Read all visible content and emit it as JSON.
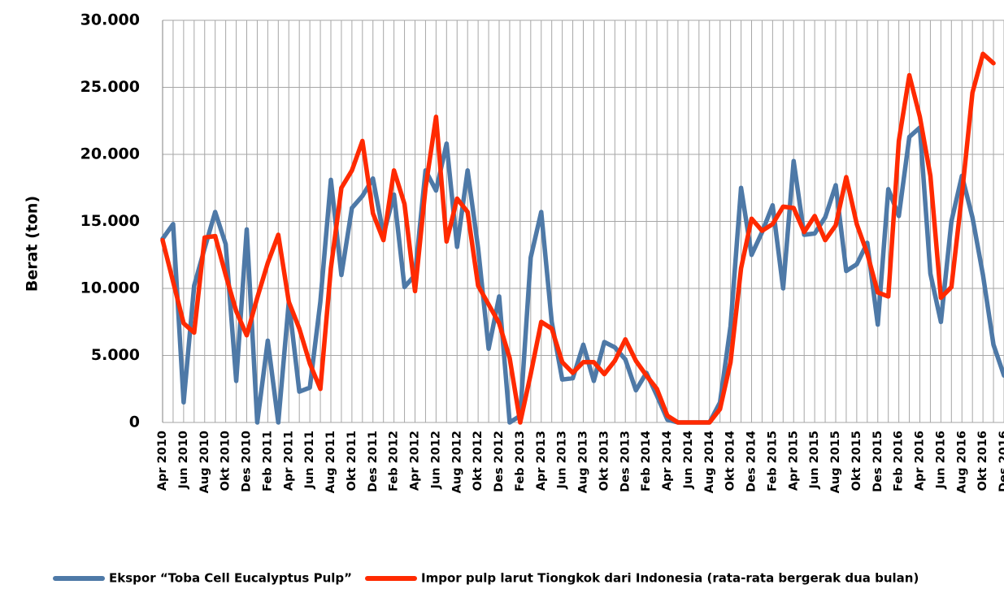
{
  "chart_data": {
    "type": "line",
    "y_label": "Berat (ton)",
    "categories": [
      "Apr 2010",
      null,
      "Jun 2010",
      null,
      "Aug 2010",
      null,
      "Okt 2010",
      null,
      "Des 2010",
      null,
      "Feb 2011",
      null,
      "Apr 2011",
      null,
      "Jun 2011",
      null,
      "Aug 2011",
      null,
      "Okt 2011",
      null,
      "Des 2011",
      null,
      "Feb 2012",
      null,
      "Apr 2012",
      null,
      "Jun 2012",
      null,
      "Aug 2012",
      null,
      "Okt 2012",
      null,
      "Des 2012",
      null,
      "Feb 2013",
      null,
      "Apr 2013",
      null,
      "Jun 2013",
      null,
      "Aug 2013",
      null,
      "Okt 2013",
      null,
      "Des 2013",
      null,
      "Feb 2014",
      null,
      "Apr 2014",
      null,
      "Jun 2014",
      null,
      "Aug 2014",
      null,
      "Okt 2014",
      null,
      "Des 2014",
      null,
      "Feb 2015",
      null,
      "Apr 2015",
      null,
      "Jun 2015",
      null,
      "Aug 2015",
      null,
      "Okt 2015",
      null,
      "Des 2015",
      null,
      "Feb 2016",
      null,
      "Apr 2016",
      null,
      "Jun 2016",
      null,
      "Aug 2016",
      null,
      "Okt 2016",
      null,
      "Des 2016"
    ],
    "series": [
      {
        "name": "Ekspor “Toba Cell Eucalyptus Pulp”",
        "color": "#4e79a7",
        "values": [
          13700,
          14800,
          1500,
          10200,
          13000,
          15700,
          13300,
          3100,
          14400,
          0,
          6100,
          0,
          9000,
          2300,
          2600,
          9000,
          18100,
          11000,
          16000,
          16900,
          18200,
          14000,
          17000,
          10100,
          11000,
          18800,
          17300,
          20800,
          13100,
          18800,
          13000,
          5500,
          9400,
          0,
          500,
          12300,
          15700,
          7500,
          3200,
          3300,
          5800,
          3100,
          6000,
          5600,
          4700,
          2400,
          3700,
          2000,
          200,
          0,
          0,
          0,
          0,
          1500,
          7200,
          17500,
          12500,
          14200,
          16200,
          10000,
          19500,
          14000,
          14100,
          15300,
          17700,
          11300,
          11800,
          13400,
          7300,
          17400,
          15400,
          21300,
          22000,
          11100,
          7500,
          15000,
          18400,
          15300,
          11000,
          5800,
          3500
        ]
      },
      {
        "name": "Impor pulp larut Tiongkok dari Indonesia (rata-rata bergerak dua bulan)",
        "color": "#ff2a00",
        "values": [
          13600,
          10500,
          7400,
          6700,
          13800,
          13900,
          11000,
          8300,
          6500,
          9300,
          11900,
          14000,
          9000,
          7000,
          4400,
          2500,
          11500,
          17500,
          18800,
          21000,
          15600,
          13600,
          18800,
          16300,
          9800,
          17500,
          22800,
          13500,
          16700,
          15700,
          10200,
          8800,
          7400,
          4800,
          0,
          3600,
          7500,
          7000,
          4500,
          3700,
          4500,
          4500,
          3600,
          4600,
          6200,
          4600,
          3500,
          2500,
          500,
          0,
          0,
          0,
          0,
          1000,
          4500,
          11500,
          15200,
          14300,
          14800,
          16100,
          16000,
          14200,
          15400,
          13600,
          14700,
          18300,
          14800,
          12600,
          9700,
          9400,
          21000,
          25900,
          22800,
          18400,
          9300,
          10100,
          17000,
          24600,
          27500,
          26800,
          null
        ]
      }
    ],
    "ylim": [
      0,
      30000
    ],
    "yticks": [
      0,
      {
        "value": 5000,
        "label": "5.000"
      },
      {
        "value": 10000,
        "label": "10.000"
      },
      {
        "value": 15000,
        "label": "15.000"
      },
      {
        "value": 20000,
        "label": "20.000"
      },
      {
        "value": 25000,
        "label": "25.000"
      },
      {
        "value": 30000,
        "label": "30.000"
      }
    ],
    "grid": true
  }
}
